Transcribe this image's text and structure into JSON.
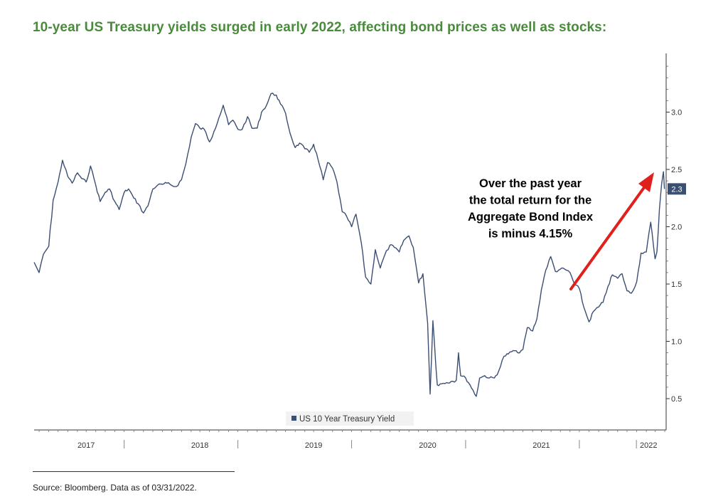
{
  "title": "10-year US Treasury yields surged in early 2022, affecting bond prices as well as stocks:",
  "source": "Source: Bloomberg. Data as of 03/31/2022.",
  "annotation": [
    "Over the past year",
    "the total return for the",
    "Aggregate Bond Index",
    "is minus 4.15%"
  ],
  "colors": {
    "title": "#4a8a3c",
    "line": "#3b4e73",
    "arrow": "#e0201c",
    "last_badge": "#3b4e73"
  },
  "chart_data": {
    "type": "line",
    "title": "10-year US Treasury yields surged in early 2022, affecting bond prices as well as stocks:",
    "ylim": [
      0.5,
      3.5
    ],
    "y_ticks": [
      0.5,
      1.0,
      1.5,
      2.0,
      2.5,
      3.0
    ],
    "y_tick_labels": [
      "0.5",
      "1.0",
      "1.5",
      "2.0",
      "2.5",
      "3.0"
    ],
    "x_range": [
      "2016-09-15",
      "2022-04-01"
    ],
    "x_tick_labels": [
      "2017",
      "2018",
      "2019",
      "2020",
      "2021",
      "2022"
    ],
    "y_axis_side": "right",
    "grid": false,
    "legend": "bottom-center",
    "last_value_label": "2.3",
    "series": [
      {
        "name": "US 10 Year Treasury Yield",
        "x": [
          "2016-09-15",
          "2016-10-01",
          "2016-10-15",
          "2016-11-01",
          "2016-11-15",
          "2016-12-01",
          "2016-12-15",
          "2017-01-01",
          "2017-01-15",
          "2017-02-01",
          "2017-02-15",
          "2017-03-01",
          "2017-03-15",
          "2017-04-01",
          "2017-04-15",
          "2017-05-01",
          "2017-05-15",
          "2017-06-01",
          "2017-06-15",
          "2017-07-01",
          "2017-07-15",
          "2017-08-01",
          "2017-08-15",
          "2017-09-01",
          "2017-09-15",
          "2017-10-01",
          "2017-10-15",
          "2017-11-01",
          "2017-11-15",
          "2017-12-01",
          "2017-12-15",
          "2018-01-01",
          "2018-01-15",
          "2018-02-01",
          "2018-02-15",
          "2018-03-01",
          "2018-03-15",
          "2018-04-01",
          "2018-04-15",
          "2018-05-01",
          "2018-05-15",
          "2018-06-01",
          "2018-06-15",
          "2018-07-01",
          "2018-07-15",
          "2018-08-01",
          "2018-08-15",
          "2018-09-01",
          "2018-09-15",
          "2018-10-01",
          "2018-10-15",
          "2018-11-01",
          "2018-11-15",
          "2018-12-01",
          "2018-12-15",
          "2019-01-01",
          "2019-01-15",
          "2019-02-01",
          "2019-02-15",
          "2019-03-01",
          "2019-03-15",
          "2019-04-01",
          "2019-04-15",
          "2019-05-01",
          "2019-05-15",
          "2019-06-01",
          "2019-06-15",
          "2019-07-01",
          "2019-07-15",
          "2019-08-01",
          "2019-08-15",
          "2019-09-01",
          "2019-09-15",
          "2019-10-01",
          "2019-10-15",
          "2019-11-01",
          "2019-11-15",
          "2019-12-01",
          "2019-12-15",
          "2020-01-01",
          "2020-01-15",
          "2020-02-01",
          "2020-02-15",
          "2020-03-01",
          "2020-03-09",
          "2020-03-18",
          "2020-04-01",
          "2020-04-15",
          "2020-05-01",
          "2020-05-15",
          "2020-06-01",
          "2020-06-08",
          "2020-06-15",
          "2020-07-01",
          "2020-07-15",
          "2020-08-04",
          "2020-08-15",
          "2020-09-01",
          "2020-09-15",
          "2020-10-01",
          "2020-10-15",
          "2020-11-01",
          "2020-11-15",
          "2020-12-01",
          "2020-12-15",
          "2021-01-01",
          "2021-01-15",
          "2021-02-01",
          "2021-02-15",
          "2021-03-01",
          "2021-03-15",
          "2021-03-31",
          "2021-04-15",
          "2021-05-01",
          "2021-05-15",
          "2021-06-01",
          "2021-06-15",
          "2021-07-01",
          "2021-07-15",
          "2021-08-01",
          "2021-08-15",
          "2021-09-01",
          "2021-09-15",
          "2021-10-01",
          "2021-10-15",
          "2021-11-01",
          "2021-11-15",
          "2021-12-01",
          "2021-12-15",
          "2022-01-01",
          "2022-01-15",
          "2022-02-01",
          "2022-02-15",
          "2022-03-01",
          "2022-03-07",
          "2022-03-15",
          "2022-03-22",
          "2022-03-28",
          "2022-03-31"
        ],
        "values": [
          1.69,
          1.6,
          1.76,
          1.83,
          2.23,
          2.39,
          2.58,
          2.44,
          2.38,
          2.47,
          2.42,
          2.39,
          2.53,
          2.36,
          2.22,
          2.3,
          2.33,
          2.22,
          2.15,
          2.3,
          2.33,
          2.25,
          2.2,
          2.12,
          2.18,
          2.33,
          2.36,
          2.37,
          2.38,
          2.36,
          2.35,
          2.41,
          2.55,
          2.78,
          2.9,
          2.86,
          2.85,
          2.74,
          2.83,
          2.95,
          3.06,
          2.89,
          2.93,
          2.85,
          2.85,
          2.96,
          2.86,
          2.86,
          3.0,
          3.06,
          3.16,
          3.15,
          3.07,
          2.99,
          2.82,
          2.69,
          2.73,
          2.68,
          2.65,
          2.72,
          2.59,
          2.41,
          2.56,
          2.51,
          2.39,
          2.13,
          2.09,
          2.0,
          2.11,
          1.86,
          1.56,
          1.5,
          1.8,
          1.64,
          1.75,
          1.84,
          1.82,
          1.78,
          1.88,
          1.92,
          1.82,
          1.51,
          1.59,
          1.16,
          0.54,
          1.18,
          0.62,
          0.63,
          0.64,
          0.65,
          0.66,
          0.9,
          0.7,
          0.68,
          0.62,
          0.52,
          0.68,
          0.7,
          0.68,
          0.68,
          0.74,
          0.87,
          0.89,
          0.92,
          0.9,
          0.93,
          1.12,
          1.09,
          1.2,
          1.45,
          1.62,
          1.74,
          1.61,
          1.63,
          1.63,
          1.6,
          1.5,
          1.46,
          1.3,
          1.17,
          1.26,
          1.3,
          1.34,
          1.48,
          1.58,
          1.55,
          1.59,
          1.44,
          1.42,
          1.52,
          1.77,
          1.78,
          2.04,
          1.72,
          1.78,
          2.15,
          2.37,
          2.48,
          2.33
        ]
      }
    ]
  }
}
